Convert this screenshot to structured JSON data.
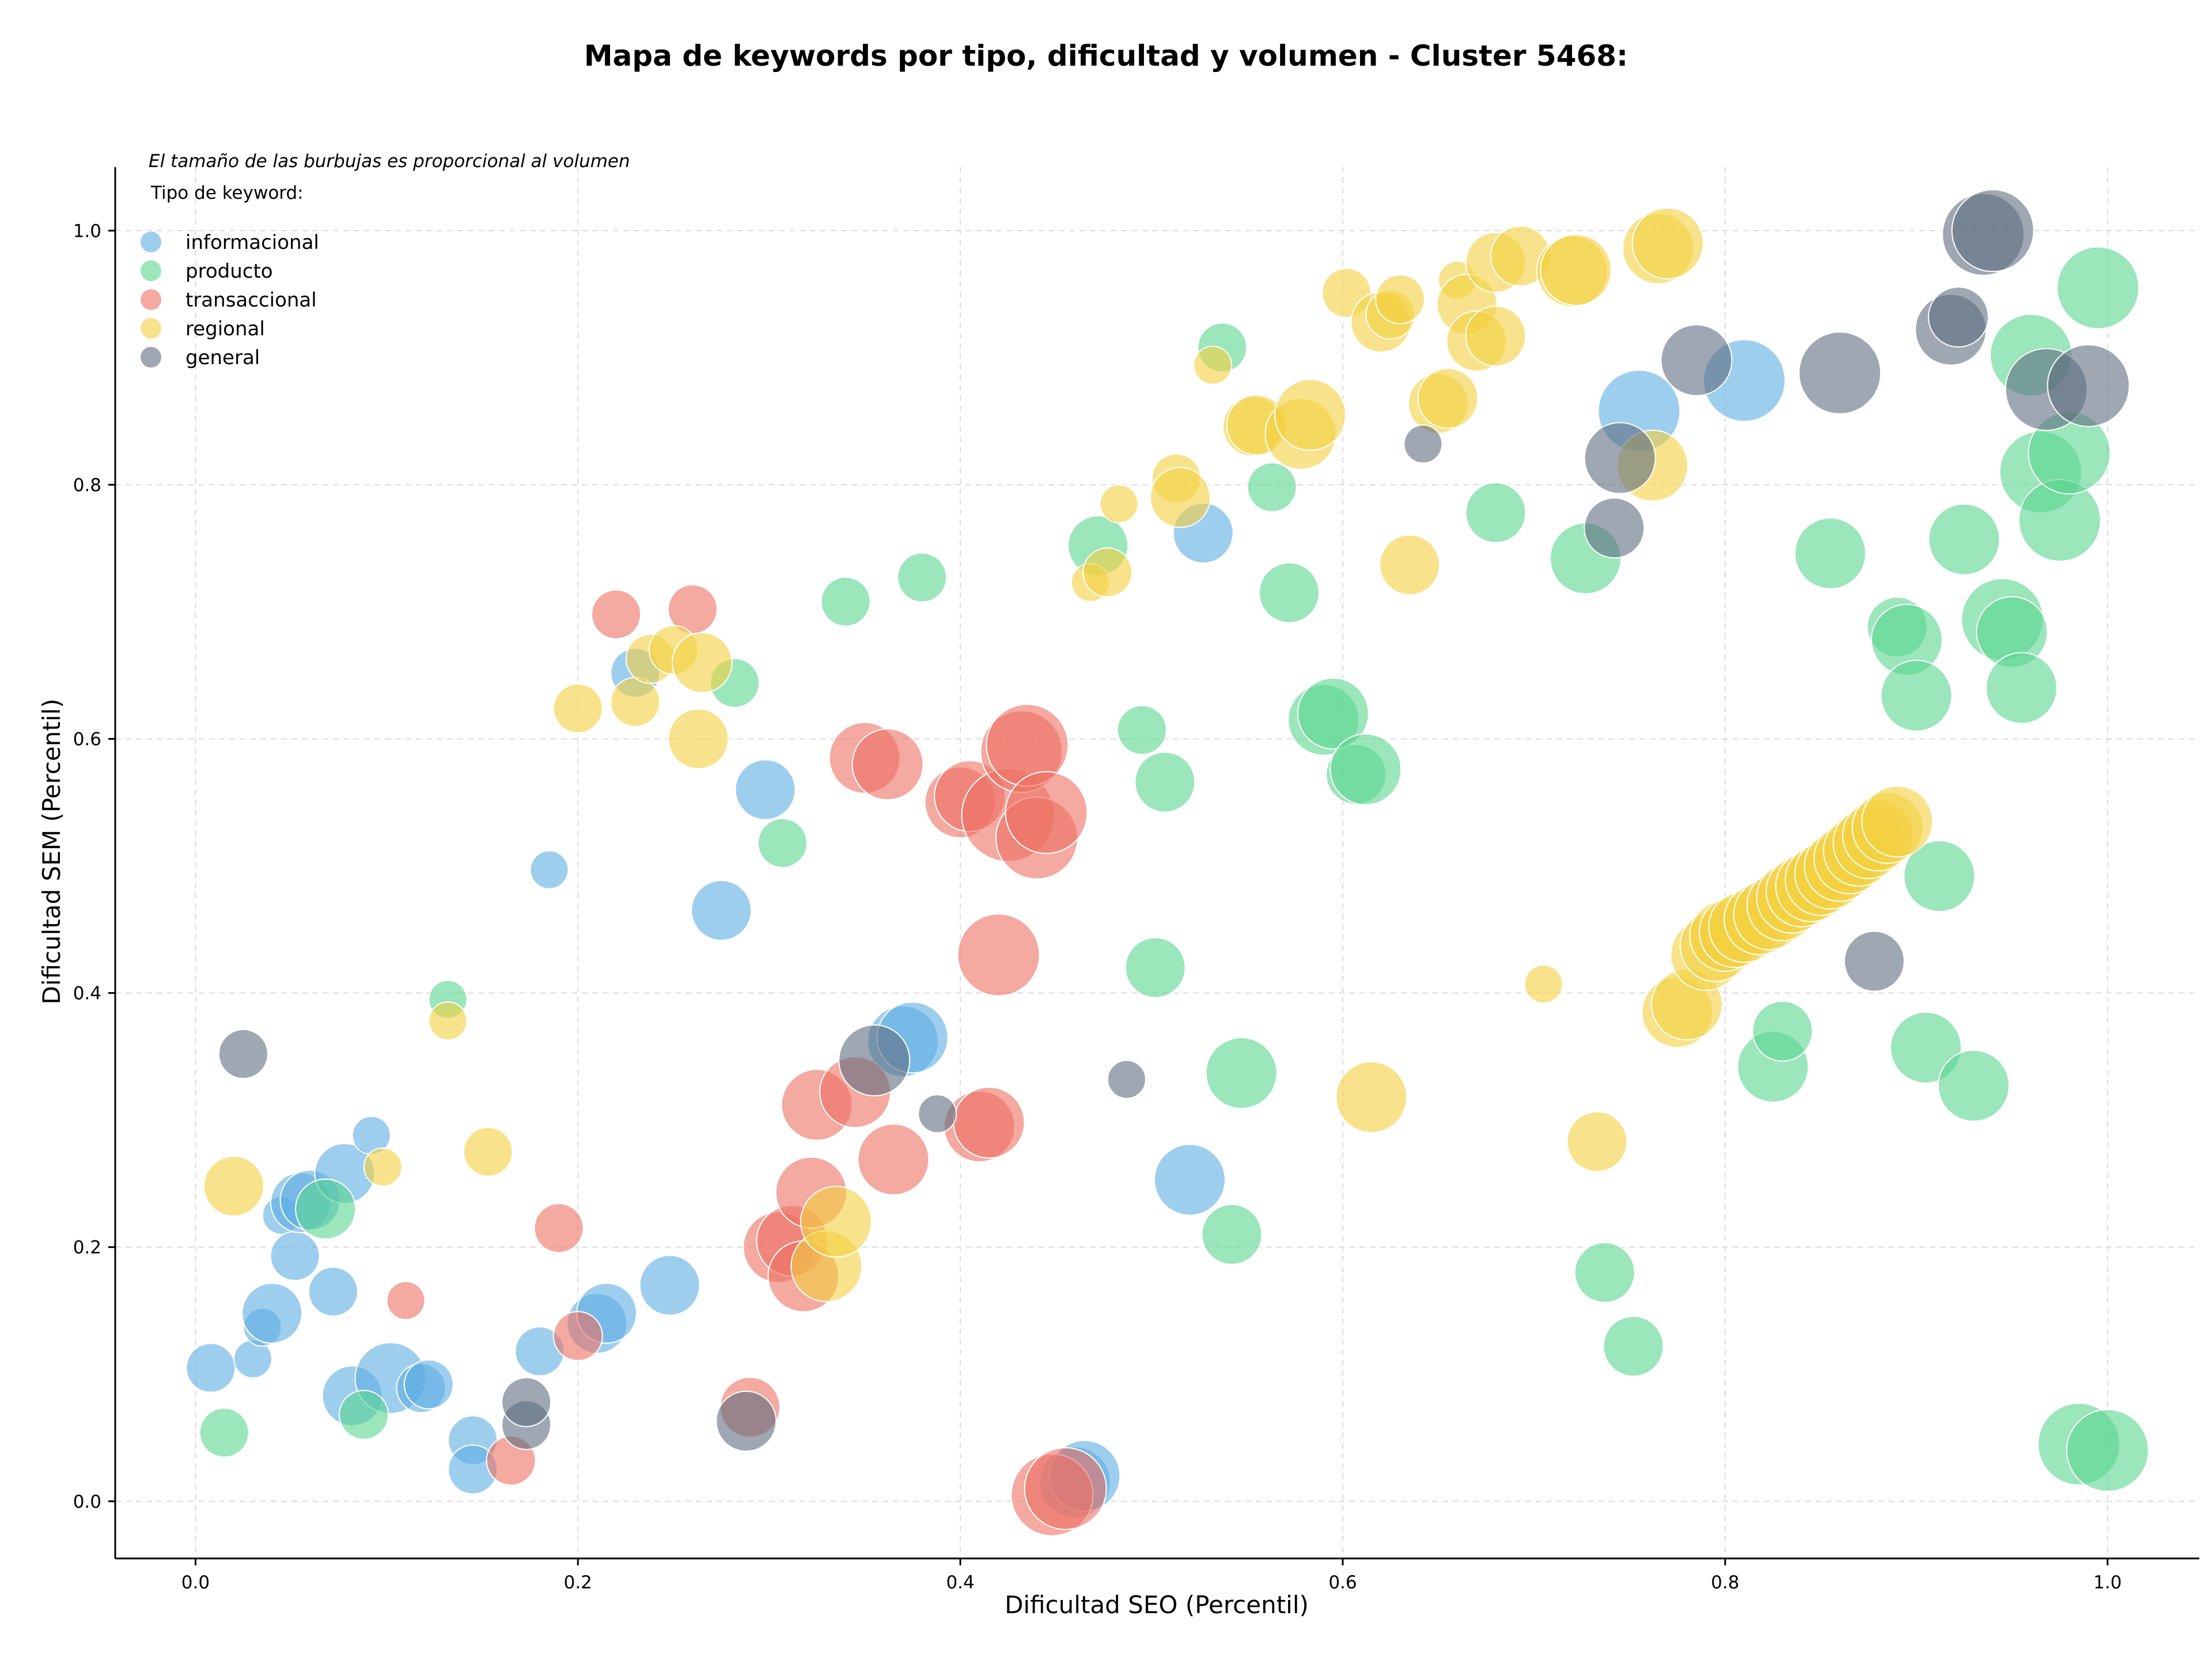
{
  "chart_data": {
    "type": "scatter",
    "title": "Mapa de keywords por tipo, dificultad y volumen - Cluster 5468:",
    "xlabel": "Dificultad SEO (Percentil)",
    "ylabel": "Dificultad SEM (Percentil)",
    "note": "El tamaño de las burbujas es proporcional al volumen",
    "legend_title": "Tipo de keyword:",
    "legend_position": "top-left",
    "grid": true,
    "xlim": [
      -0.042,
      1.048
    ],
    "ylim": [
      -0.045,
      1.05
    ],
    "xticks": [
      "0.0",
      "0.2",
      "0.4",
      "0.6",
      "0.8",
      "1.0"
    ],
    "yticks": [
      "0.0",
      "0.2",
      "0.4",
      "0.6",
      "0.8",
      "1.0"
    ],
    "series": [
      {
        "name": "informacional",
        "color": "#5dade2",
        "points": [
          [
            0.008,
            0.105,
            3
          ],
          [
            0.03,
            0.112,
            2
          ],
          [
            0.035,
            0.137,
            2
          ],
          [
            0.04,
            0.148,
            4
          ],
          [
            0.045,
            0.225,
            2
          ],
          [
            0.052,
            0.193,
            3
          ],
          [
            0.055,
            0.235,
            4
          ],
          [
            0.06,
            0.237,
            4
          ],
          [
            0.072,
            0.165,
            3
          ],
          [
            0.078,
            0.258,
            4
          ],
          [
            0.082,
            0.083,
            4
          ],
          [
            0.092,
            0.288,
            2
          ],
          [
            0.102,
            0.097,
            5
          ],
          [
            0.118,
            0.089,
            3
          ],
          [
            0.122,
            0.092,
            3
          ],
          [
            0.145,
            0.048,
            3
          ],
          [
            0.145,
            0.025,
            3
          ],
          [
            0.18,
            0.118,
            3
          ],
          [
            0.185,
            0.497,
            2
          ],
          [
            0.21,
            0.14,
            4
          ],
          [
            0.215,
            0.148,
            4
          ],
          [
            0.23,
            0.652,
            3
          ],
          [
            0.248,
            0.17,
            4
          ],
          [
            0.275,
            0.465,
            4
          ],
          [
            0.298,
            0.56,
            4
          ],
          [
            0.37,
            0.362,
            5
          ],
          [
            0.375,
            0.365,
            5
          ],
          [
            0.46,
            0.015,
            5
          ],
          [
            0.465,
            0.02,
            5
          ],
          [
            0.52,
            0.253,
            5
          ],
          [
            0.527,
            0.762,
            4
          ],
          [
            0.755,
            0.858,
            6
          ],
          [
            0.81,
            0.882,
            6
          ]
        ]
      },
      {
        "name": "producto",
        "color": "#58d68d",
        "points": [
          [
            0.015,
            0.054,
            3
          ],
          [
            0.068,
            0.23,
            4
          ],
          [
            0.088,
            0.068,
            3
          ],
          [
            0.132,
            0.395,
            2
          ],
          [
            0.282,
            0.644,
            3
          ],
          [
            0.307,
            0.518,
            3
          ],
          [
            0.34,
            0.708,
            3
          ],
          [
            0.38,
            0.727,
            3
          ],
          [
            0.472,
            0.752,
            4
          ],
          [
            0.495,
            0.607,
            3
          ],
          [
            0.502,
            0.42,
            4
          ],
          [
            0.507,
            0.566,
            4
          ],
          [
            0.537,
            0.908,
            3
          ],
          [
            0.542,
            0.21,
            4
          ],
          [
            0.547,
            0.337,
            5
          ],
          [
            0.563,
            0.798,
            3
          ],
          [
            0.572,
            0.715,
            4
          ],
          [
            0.59,
            0.615,
            5
          ],
          [
            0.595,
            0.62,
            5
          ],
          [
            0.607,
            0.572,
            4
          ],
          [
            0.612,
            0.576,
            5
          ],
          [
            0.68,
            0.778,
            4
          ],
          [
            0.727,
            0.742,
            5
          ],
          [
            0.737,
            0.18,
            4
          ],
          [
            0.752,
            0.122,
            4
          ],
          [
            0.825,
            0.342,
            5
          ],
          [
            0.83,
            0.37,
            4
          ],
          [
            0.855,
            0.746,
            5
          ],
          [
            0.89,
            0.688,
            4
          ],
          [
            0.895,
            0.678,
            5
          ],
          [
            0.9,
            0.634,
            5
          ],
          [
            0.905,
            0.357,
            5
          ],
          [
            0.912,
            0.492,
            5
          ],
          [
            0.925,
            0.757,
            5
          ],
          [
            0.93,
            0.327,
            5
          ],
          [
            0.945,
            0.694,
            6
          ],
          [
            0.95,
            0.684,
            5
          ],
          [
            0.955,
            0.64,
            5
          ],
          [
            0.96,
            0.902,
            6
          ],
          [
            0.965,
            0.81,
            6
          ],
          [
            0.975,
            0.772,
            6
          ],
          [
            0.98,
            0.825,
            6
          ],
          [
            0.985,
            0.045,
            6
          ],
          [
            0.995,
            0.955,
            6
          ],
          [
            1.0,
            0.04,
            6
          ]
        ]
      },
      {
        "name": "transaccional",
        "color": "#ec7063",
        "points": [
          [
            0.11,
            0.158,
            2
          ],
          [
            0.165,
            0.032,
            3
          ],
          [
            0.19,
            0.215,
            3
          ],
          [
            0.2,
            0.13,
            3
          ],
          [
            0.22,
            0.698,
            3
          ],
          [
            0.26,
            0.702,
            3
          ],
          [
            0.29,
            0.074,
            4
          ],
          [
            0.305,
            0.2,
            5
          ],
          [
            0.312,
            0.205,
            5
          ],
          [
            0.318,
            0.177,
            5
          ],
          [
            0.322,
            0.243,
            5
          ],
          [
            0.325,
            0.312,
            5
          ],
          [
            0.345,
            0.322,
            5
          ],
          [
            0.35,
            0.585,
            5
          ],
          [
            0.362,
            0.58,
            5
          ],
          [
            0.365,
            0.269,
            5
          ],
          [
            0.4,
            0.55,
            5
          ],
          [
            0.405,
            0.555,
            5
          ],
          [
            0.41,
            0.295,
            5
          ],
          [
            0.415,
            0.298,
            5
          ],
          [
            0.42,
            0.43,
            6
          ],
          [
            0.425,
            0.54,
            7
          ],
          [
            0.432,
            0.59,
            6
          ],
          [
            0.435,
            0.595,
            6
          ],
          [
            0.44,
            0.522,
            6
          ],
          [
            0.445,
            0.542,
            6
          ],
          [
            0.448,
            0.005,
            6
          ],
          [
            0.455,
            0.01,
            6
          ]
        ]
      },
      {
        "name": "regional",
        "color": "#f4d03f",
        "points": [
          [
            0.02,
            0.248,
            4
          ],
          [
            0.098,
            0.263,
            2
          ],
          [
            0.132,
            0.378,
            2
          ],
          [
            0.153,
            0.275,
            3
          ],
          [
            0.2,
            0.624,
            3
          ],
          [
            0.23,
            0.629,
            3
          ],
          [
            0.238,
            0.663,
            3
          ],
          [
            0.25,
            0.67,
            3
          ],
          [
            0.265,
            0.66,
            4
          ],
          [
            0.263,
            0.6,
            4
          ],
          [
            0.33,
            0.185,
            5
          ],
          [
            0.335,
            0.22,
            5
          ],
          [
            0.468,
            0.723,
            2
          ],
          [
            0.477,
            0.731,
            3
          ],
          [
            0.483,
            0.785,
            2
          ],
          [
            0.513,
            0.805,
            3
          ],
          [
            0.515,
            0.79,
            4
          ],
          [
            0.532,
            0.894,
            2
          ],
          [
            0.553,
            0.846,
            4
          ],
          [
            0.555,
            0.847,
            4
          ],
          [
            0.578,
            0.84,
            5
          ],
          [
            0.583,
            0.855,
            5
          ],
          [
            0.602,
            0.951,
            3
          ],
          [
            0.615,
            0.318,
            5
          ],
          [
            0.62,
            0.928,
            4
          ],
          [
            0.625,
            0.934,
            3
          ],
          [
            0.63,
            0.946,
            3
          ],
          [
            0.635,
            0.737,
            4
          ],
          [
            0.65,
            0.864,
            4
          ],
          [
            0.655,
            0.868,
            4
          ],
          [
            0.66,
            0.961,
            2
          ],
          [
            0.665,
            0.942,
            4
          ],
          [
            0.67,
            0.913,
            4
          ],
          [
            0.68,
            0.917,
            4
          ],
          [
            0.68,
            0.975,
            4
          ],
          [
            0.693,
            0.98,
            4
          ],
          [
            0.705,
            0.407,
            2
          ],
          [
            0.72,
            0.968,
            5
          ],
          [
            0.722,
            0.969,
            5
          ],
          [
            0.733,
            0.283,
            4
          ],
          [
            0.762,
            0.815,
            5
          ],
          [
            0.765,
            0.986,
            5
          ],
          [
            0.77,
            0.99,
            5
          ],
          [
            0.775,
            0.385,
            5
          ],
          [
            0.78,
            0.391,
            5
          ],
          [
            0.79,
            0.43,
            5
          ],
          [
            0.795,
            0.437,
            5
          ],
          [
            0.8,
            0.445,
            5
          ],
          [
            0.805,
            0.448,
            5
          ],
          [
            0.81,
            0.452,
            5
          ],
          [
            0.818,
            0.458,
            5
          ],
          [
            0.823,
            0.462,
            5
          ],
          [
            0.83,
            0.469,
            5
          ],
          [
            0.835,
            0.475,
            5
          ],
          [
            0.84,
            0.48,
            5
          ],
          [
            0.845,
            0.484,
            5
          ],
          [
            0.85,
            0.489,
            5
          ],
          [
            0.855,
            0.494,
            5
          ],
          [
            0.86,
            0.5,
            5
          ],
          [
            0.865,
            0.506,
            5
          ],
          [
            0.87,
            0.512,
            5
          ],
          [
            0.875,
            0.518,
            5
          ],
          [
            0.88,
            0.524,
            5
          ],
          [
            0.885,
            0.53,
            5
          ],
          [
            0.89,
            0.535,
            5
          ]
        ]
      },
      {
        "name": "general",
        "color": "#5d6d7e",
        "points": [
          [
            0.025,
            0.352,
            3
          ],
          [
            0.173,
            0.06,
            3
          ],
          [
            0.173,
            0.078,
            3
          ],
          [
            0.288,
            0.063,
            4
          ],
          [
            0.355,
            0.347,
            5
          ],
          [
            0.388,
            0.305,
            2
          ],
          [
            0.487,
            0.332,
            2
          ],
          [
            0.642,
            0.832,
            2
          ],
          [
            0.742,
            0.766,
            4
          ],
          [
            0.745,
            0.821,
            5
          ],
          [
            0.785,
            0.898,
            5
          ],
          [
            0.86,
            0.888,
            6
          ],
          [
            0.878,
            0.425,
            4
          ],
          [
            0.918,
            0.922,
            5
          ],
          [
            0.922,
            0.932,
            4
          ],
          [
            0.935,
            0.997,
            6
          ],
          [
            0.94,
            1.0,
            6
          ],
          [
            0.968,
            0.875,
            6
          ],
          [
            0.99,
            0.878,
            6
          ]
        ]
      }
    ]
  }
}
